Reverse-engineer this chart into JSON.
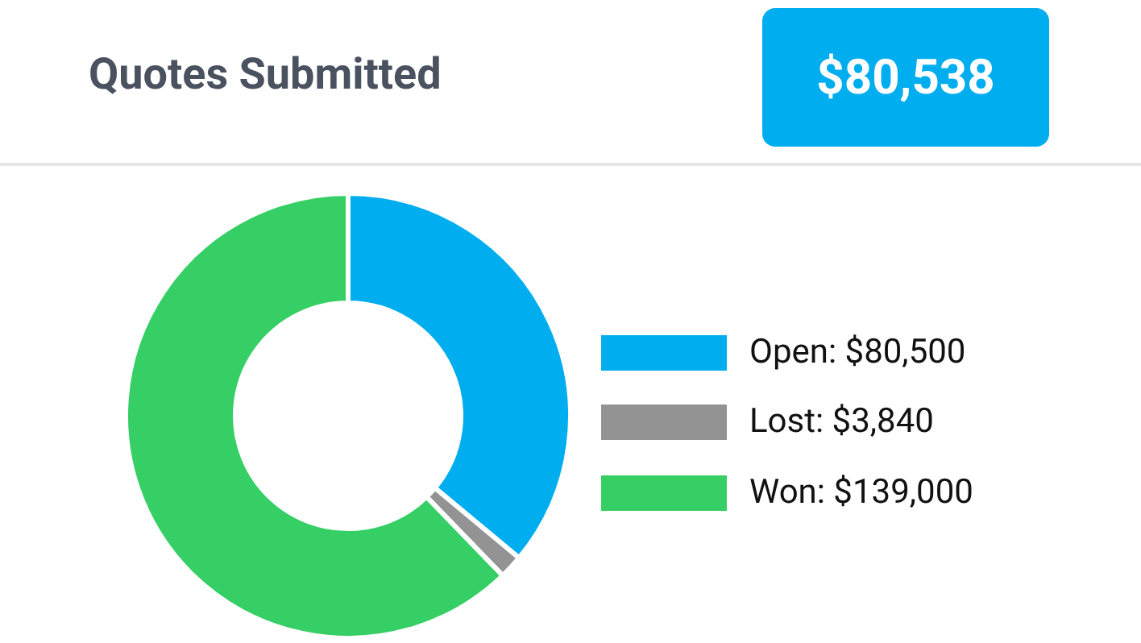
{
  "chart_data": {
    "type": "donut",
    "title": "Quotes Submitted",
    "annotations": [
      "$80,538"
    ],
    "categories": [
      "Open",
      "Lost",
      "Won"
    ],
    "values": [
      80500,
      3840,
      139000
    ],
    "value_labels": [
      ": $80,500",
      ": $3,840",
      ": $139,000"
    ],
    "colors": [
      "#00aeef",
      "#939393",
      "#36cf65"
    ],
    "legend": "right"
  }
}
